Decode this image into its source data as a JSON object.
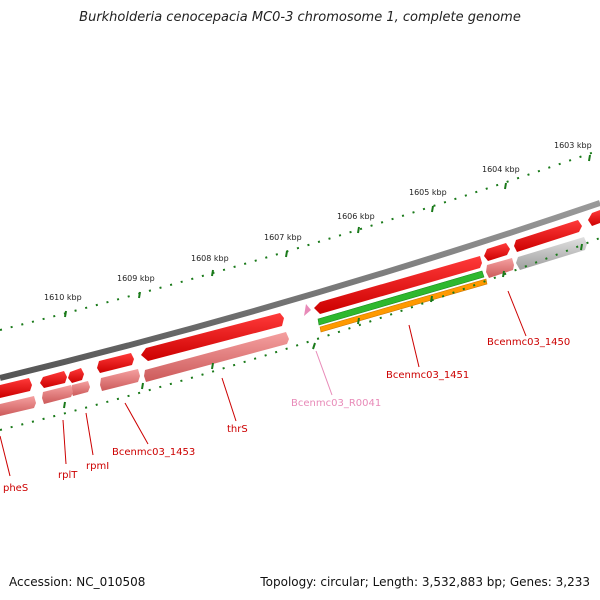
{
  "title": "Burkholderia cenocepacia MC0-3 chromosome 1, complete genome",
  "footer": {
    "accession": "Accession: NC_010508",
    "info": "Topology: circular; Length: 3,532,883 bp; Genes: 3,233"
  },
  "ticks": [
    "1603 kbp",
    "1604 kbp",
    "1605 kbp",
    "1606 kbp",
    "1607 kbp",
    "1608 kbp",
    "1609 kbp",
    "1610 kbp"
  ],
  "genes": [
    {
      "label": "Bcenmc03_1450",
      "color": "#cc0000"
    },
    {
      "label": "Bcenmc03_1451",
      "color": "#cc0000"
    },
    {
      "label": "Bcenmc03_R0041",
      "color": "#e88ab8"
    },
    {
      "label": "thrS",
      "color": "#cc0000"
    },
    {
      "label": "Bcenmc03_1453",
      "color": "#cc0000"
    },
    {
      "label": "rpmI",
      "color": "#cc0000"
    },
    {
      "label": "rplT",
      "color": "#cc0000"
    },
    {
      "label": "pheS",
      "color": "#cc0000"
    }
  ],
  "colors": {
    "gene_red": "#e10000",
    "gene_pink": "#f08080",
    "gray_band": "#bdbdbd",
    "green": "#2eb82e",
    "orange": "#ff9900",
    "backbone": "#777777",
    "tick": "#1a7a1a"
  }
}
